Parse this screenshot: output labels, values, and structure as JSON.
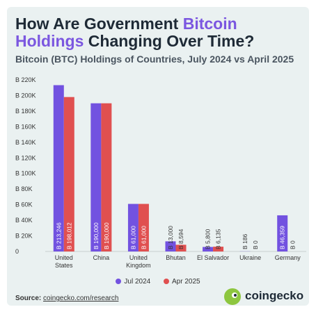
{
  "header": {
    "title_part1": "How Are Government ",
    "title_highlight1": "Bitcoin",
    "title_highlight2": "Holdings",
    "title_part2": " Changing Over Time?",
    "subtitle": "Bitcoin (BTC) Holdings of Countries, July 2024 vs April 2025"
  },
  "chart_data": {
    "type": "bar",
    "title": "How Are Government Bitcoin Holdings Changing Over Time?",
    "subtitle": "Bitcoin (BTC) Holdings of Countries, July 2024 vs April 2025",
    "categories": [
      "United States",
      "China",
      "United Kingdom",
      "Bhutan",
      "El Salvador",
      "Ukraine",
      "Germany"
    ],
    "category_lines": [
      [
        "United",
        "States"
      ],
      [
        "China"
      ],
      [
        "United",
        "Kingdom"
      ],
      [
        "Bhutan"
      ],
      [
        "El Salvador"
      ],
      [
        "Ukraine"
      ],
      [
        "Germany"
      ]
    ],
    "series": [
      {
        "name": "Jul 2024",
        "color": "#7252e0",
        "values": [
          213246,
          190000,
          61000,
          13000,
          5800,
          186,
          46359
        ]
      },
      {
        "name": "Apr 2025",
        "color": "#e05050",
        "values": [
          198012,
          190000,
          61000,
          8594,
          6135,
          0,
          0
        ]
      }
    ],
    "data_labels": [
      [
        "B 213,246",
        "B 190,000",
        "B 61,000",
        "B 13,000",
        "B 5,800",
        "B 186",
        "B 46,359"
      ],
      [
        "B 198,012",
        "B 190,000",
        "B 61,000",
        "B 8,594",
        "B 6,135",
        "B 0",
        "B 0"
      ]
    ],
    "ylim": [
      0,
      220000
    ],
    "yticks": [
      0,
      20000,
      40000,
      60000,
      80000,
      100000,
      120000,
      140000,
      160000,
      180000,
      200000,
      220000
    ],
    "ytick_labels": [
      "0",
      "B 20K",
      "B 40K",
      "B 60K",
      "B 80K",
      "B 100K",
      "B 120K",
      "B 140K",
      "B 160K",
      "B 180K",
      "B 200K",
      "B 220K"
    ],
    "legend_position": "bottom-center",
    "grid": false
  },
  "source": {
    "label": "Source:",
    "text": "coingecko.com/research"
  },
  "brand": {
    "name": "coingecko"
  }
}
